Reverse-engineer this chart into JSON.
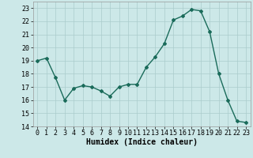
{
  "x": [
    0,
    1,
    2,
    3,
    4,
    5,
    6,
    7,
    8,
    9,
    10,
    11,
    12,
    13,
    14,
    15,
    16,
    17,
    18,
    19,
    20,
    21,
    22,
    23
  ],
  "y": [
    19.0,
    19.2,
    17.7,
    16.0,
    16.9,
    17.1,
    17.0,
    16.7,
    16.3,
    17.0,
    17.2,
    17.2,
    18.5,
    19.3,
    20.3,
    22.1,
    22.4,
    22.9,
    22.8,
    21.2,
    18.0,
    16.0,
    14.4,
    14.3
  ],
  "line_color": "#1a6b5a",
  "marker": "D",
  "marker_size": 2,
  "bg_color": "#cce8e8",
  "grid_color": "#aacccc",
  "xlabel": "Humidex (Indice chaleur)",
  "ylim": [
    14,
    23.5
  ],
  "xlim": [
    -0.5,
    23.5
  ],
  "yticks": [
    14,
    15,
    16,
    17,
    18,
    19,
    20,
    21,
    22,
    23
  ],
  "xticks": [
    0,
    1,
    2,
    3,
    4,
    5,
    6,
    7,
    8,
    9,
    10,
    11,
    12,
    13,
    14,
    15,
    16,
    17,
    18,
    19,
    20,
    21,
    22,
    23
  ],
  "xlabel_fontsize": 7,
  "tick_fontsize": 6,
  "line_width": 1.0
}
